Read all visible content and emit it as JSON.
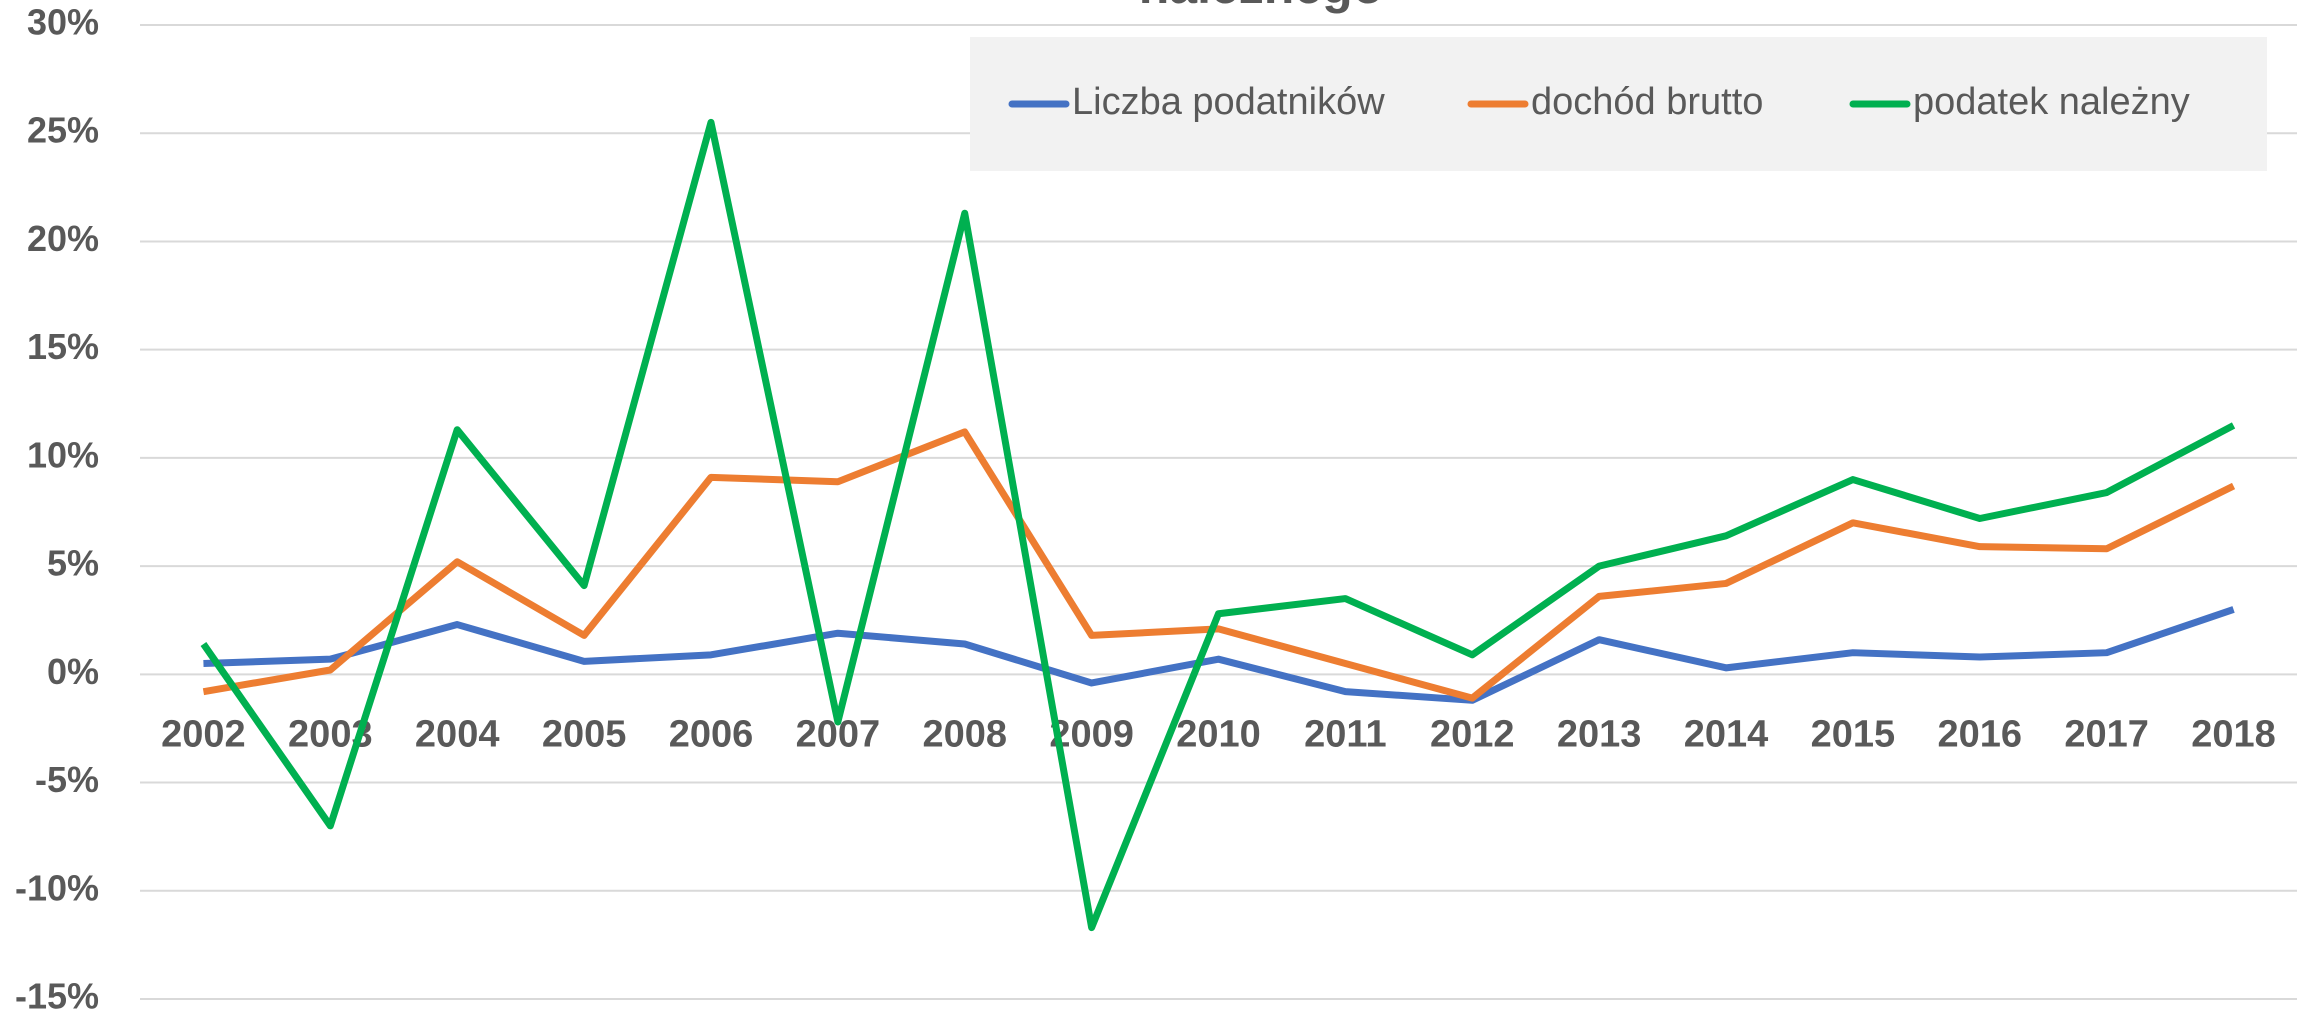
{
  "chart_data": {
    "type": "line",
    "title": "należnego",
    "categories": [
      "2002",
      "2003",
      "2004",
      "2005",
      "2006",
      "2007",
      "2008",
      "2009",
      "2010",
      "2011",
      "2012",
      "2013",
      "2014",
      "2015",
      "2016",
      "2017",
      "2018"
    ],
    "series": [
      {
        "name": "Liczba podatników",
        "color": "#4472c4",
        "values": [
          0.5,
          0.7,
          2.3,
          0.6,
          0.9,
          1.9,
          1.4,
          -0.4,
          0.7,
          -0.8,
          -1.2,
          1.6,
          0.3,
          1.0,
          0.8,
          1.0,
          3.0
        ]
      },
      {
        "name": "dochód brutto",
        "color": "#ed7d31",
        "values": [
          -0.8,
          0.2,
          5.2,
          1.8,
          9.1,
          8.9,
          11.2,
          1.8,
          2.1,
          0.5,
          -1.1,
          3.6,
          4.2,
          7.0,
          5.9,
          5.8,
          8.7
        ]
      },
      {
        "name": "podatek należny",
        "color": "#00b050",
        "values": [
          1.4,
          -7.0,
          11.3,
          4.1,
          25.5,
          -2.2,
          21.3,
          -11.7,
          2.8,
          3.5,
          0.9,
          5.0,
          6.4,
          9.0,
          7.2,
          8.4,
          11.5
        ]
      }
    ],
    "ylim": [
      -15,
      30
    ],
    "yticks": [
      {
        "value": -15,
        "label": "-15%"
      },
      {
        "value": -10,
        "label": "-10%"
      },
      {
        "value": -5,
        "label": "-5%"
      },
      {
        "value": 0,
        "label": "0%"
      },
      {
        "value": 5,
        "label": "5%"
      },
      {
        "value": 10,
        "label": "10%"
      },
      {
        "value": 15,
        "label": "15%"
      },
      {
        "value": 20,
        "label": "20%"
      },
      {
        "value": 25,
        "label": "25%"
      },
      {
        "value": 30,
        "label": "30%"
      }
    ],
    "grid": true,
    "legend": "top-right"
  }
}
